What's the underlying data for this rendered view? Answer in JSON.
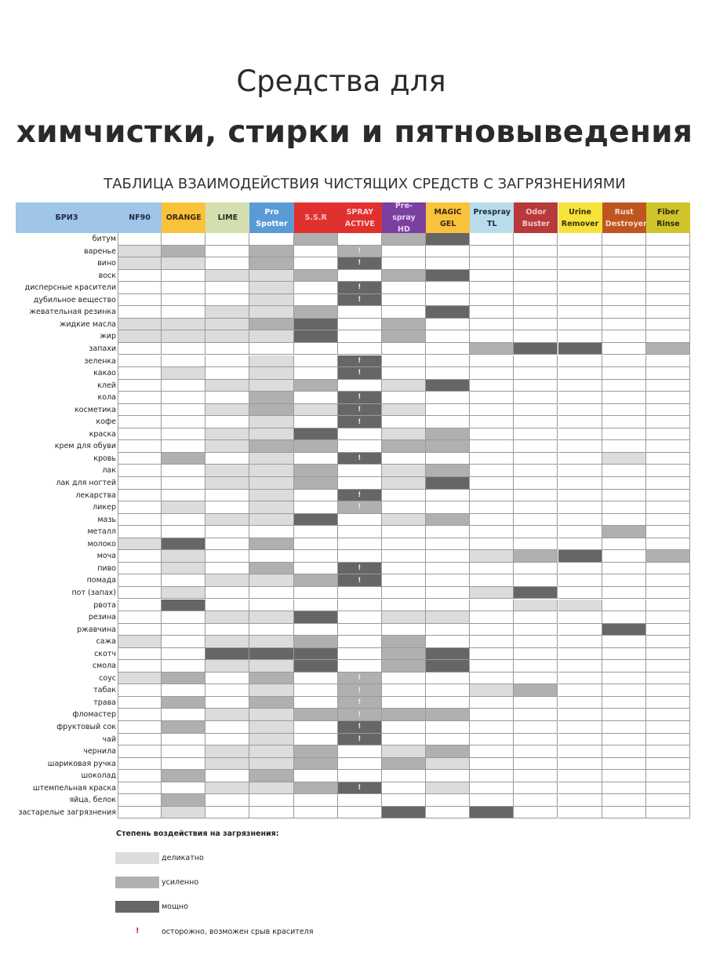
{
  "title_line1": "Средства для",
  "title_line2": "химчистки, стирки и пятновыведения",
  "subtitle": "ТАБЛИЦА ВЗАИМОДЕЙСТВИЯ ЧИСТЯЩИХ СРЕДСТВ С ЗАГРЯЗНЕНИЯМИ",
  "corner_label": "БРИЗ",
  "products": [
    {
      "name": "NF90",
      "bg": "#9fc5e8",
      "fg": "#1e2a44"
    },
    {
      "name": "ORANGE",
      "bg": "#f9c23c",
      "fg": "#3a2a10"
    },
    {
      "name": "LIME",
      "bg": "#d4dfb0",
      "fg": "#2a2a2a"
    },
    {
      "name": "Pro Spotter",
      "bg": "#5b9bd5",
      "fg": "#ffffff"
    },
    {
      "name": "S.S.R",
      "bg": "#e0312f",
      "fg": "#f4c0c0"
    },
    {
      "name": "SPRAY ACTIVE",
      "bg": "#e0312f",
      "fg": "#f9d2d2"
    },
    {
      "name": "Pre-spray HD",
      "bg": "#7b3fa0",
      "fg": "#e6d2f2"
    },
    {
      "name": "MAGIC GEL",
      "bg": "#f9c23c",
      "fg": "#3a2a10"
    },
    {
      "name": "Prespray TL",
      "bg": "#b9dcea",
      "fg": "#1e2a44"
    },
    {
      "name": "Odor Buster",
      "bg": "#b8393c",
      "fg": "#f2c8c8"
    },
    {
      "name": "Urine Remover",
      "bg": "#f5e23a",
      "fg": "#3a3010"
    },
    {
      "name": "Rust Destroyer",
      "bg": "#c0561f",
      "fg": "#f5dccb"
    },
    {
      "name": "Fiber Rinse",
      "bg": "#cfc42a",
      "fg": "#2a2a10"
    }
  ],
  "level_colors": {
    "1": "#dcdcdc",
    "2": "#b0b0b0",
    "3": "#676565"
  },
  "rows": [
    {
      "name": "битум",
      "cells": [
        "",
        "",
        "",
        "",
        "2",
        "",
        "2",
        "3",
        "",
        "",
        "",
        "",
        ""
      ]
    },
    {
      "name": "варенье",
      "cells": [
        "1",
        "2",
        "",
        "2",
        "",
        "2!",
        "",
        "",
        "",
        "",
        "",
        "",
        ""
      ]
    },
    {
      "name": "вино",
      "cells": [
        "1",
        "1",
        "",
        "2",
        "",
        "3!",
        "",
        "",
        "",
        "",
        "",
        "",
        ""
      ]
    },
    {
      "name": "воск",
      "cells": [
        "",
        "",
        "1",
        "1",
        "2",
        "",
        "2",
        "3",
        "",
        "",
        "",
        "",
        ""
      ]
    },
    {
      "name": "дисперсные красители",
      "cells": [
        "",
        "",
        "",
        "1",
        "",
        "3!",
        "",
        "",
        "",
        "",
        "",
        "",
        ""
      ]
    },
    {
      "name": "дубильное вещество",
      "cells": [
        "",
        "",
        "",
        "1",
        "",
        "3!",
        "",
        "",
        "",
        "",
        "",
        "",
        ""
      ]
    },
    {
      "name": "жевательная резинка",
      "cells": [
        "",
        "",
        "1",
        "1",
        "2",
        "",
        "",
        "3",
        "",
        "",
        "",
        "",
        ""
      ]
    },
    {
      "name": "жидкие масла",
      "cells": [
        "1",
        "1",
        "1",
        "2",
        "3",
        "",
        "2",
        "",
        "",
        "",
        "",
        "",
        ""
      ]
    },
    {
      "name": "жир",
      "cells": [
        "1",
        "1",
        "1",
        "1",
        "3",
        "",
        "2",
        "",
        "",
        "",
        "",
        "",
        ""
      ]
    },
    {
      "name": "запахи",
      "cells": [
        "",
        "",
        "",
        "",
        "",
        "",
        "",
        "",
        "2",
        "3",
        "3",
        "",
        "2"
      ]
    },
    {
      "name": "зеленка",
      "cells": [
        "",
        "",
        "",
        "1",
        "",
        "3!",
        "",
        "",
        "",
        "",
        "",
        "",
        ""
      ]
    },
    {
      "name": "какао",
      "cells": [
        "",
        "1",
        "",
        "1",
        "",
        "3!",
        "",
        "",
        "",
        "",
        "",
        "",
        ""
      ]
    },
    {
      "name": "клей",
      "cells": [
        "",
        "",
        "1",
        "1",
        "2",
        "",
        "1",
        "3",
        "",
        "",
        "",
        "",
        ""
      ]
    },
    {
      "name": "кола",
      "cells": [
        "",
        "",
        "",
        "2",
        "",
        "3!",
        "",
        "",
        "",
        "",
        "",
        "",
        ""
      ]
    },
    {
      "name": "косметика",
      "cells": [
        "",
        "",
        "1",
        "2",
        "1",
        "3!",
        "1",
        "",
        "",
        "",
        "",
        "",
        ""
      ]
    },
    {
      "name": "кофе",
      "cells": [
        "",
        "",
        "",
        "1",
        "",
        "3!",
        "",
        "",
        "",
        "",
        "",
        "",
        ""
      ]
    },
    {
      "name": "краска",
      "cells": [
        "",
        "",
        "1",
        "1",
        "3",
        "",
        "1",
        "2",
        "",
        "",
        "",
        "",
        ""
      ]
    },
    {
      "name": "крем для обуви",
      "cells": [
        "",
        "",
        "1",
        "2",
        "2",
        "",
        "2",
        "2",
        "",
        "",
        "",
        "",
        ""
      ]
    },
    {
      "name": "кровь",
      "cells": [
        "",
        "2",
        "",
        "1",
        "",
        "3!",
        "",
        "",
        "",
        "",
        "",
        "1",
        ""
      ]
    },
    {
      "name": "лак",
      "cells": [
        "",
        "",
        "1",
        "1",
        "2",
        "",
        "1",
        "2",
        "",
        "",
        "",
        "",
        ""
      ]
    },
    {
      "name": "лак для ногтей",
      "cells": [
        "",
        "",
        "1",
        "1",
        "2",
        "",
        "1",
        "3",
        "",
        "",
        "",
        "",
        ""
      ]
    },
    {
      "name": "лекарства",
      "cells": [
        "",
        "",
        "",
        "1",
        "",
        "3!",
        "",
        "",
        "",
        "",
        "",
        "",
        ""
      ]
    },
    {
      "name": "ликер",
      "cells": [
        "",
        "1",
        "",
        "1",
        "",
        "2!",
        "",
        "",
        "",
        "",
        "",
        "",
        ""
      ]
    },
    {
      "name": "мазь",
      "cells": [
        "",
        "",
        "1",
        "1",
        "3",
        "",
        "1",
        "2",
        "",
        "",
        "",
        "",
        ""
      ]
    },
    {
      "name": "металл",
      "cells": [
        "",
        "",
        "",
        "",
        "",
        "",
        "",
        "",
        "",
        "",
        "",
        "2",
        ""
      ]
    },
    {
      "name": "молоко",
      "cells": [
        "1",
        "3",
        "",
        "2",
        "",
        "",
        "",
        "",
        "",
        "",
        "",
        "",
        ""
      ]
    },
    {
      "name": "моча",
      "cells": [
        "",
        "1",
        "",
        "",
        "",
        "",
        "",
        "",
        "1",
        "2",
        "3",
        "",
        "2"
      ]
    },
    {
      "name": "пиво",
      "cells": [
        "",
        "1",
        "",
        "2",
        "",
        "3!",
        "",
        "",
        "",
        "",
        "",
        "",
        ""
      ]
    },
    {
      "name": "помада",
      "cells": [
        "",
        "",
        "1",
        "1",
        "2",
        "3!",
        "",
        "",
        "",
        "",
        "",
        "",
        ""
      ]
    },
    {
      "name": "пот (запах)",
      "cells": [
        "",
        "1",
        "",
        "",
        "",
        "",
        "",
        "",
        "1",
        "3",
        "",
        "",
        ""
      ]
    },
    {
      "name": "рвота",
      "cells": [
        "",
        "3",
        "",
        "",
        "",
        "",
        "",
        "",
        "",
        "1",
        "1",
        "",
        ""
      ]
    },
    {
      "name": "резина",
      "cells": [
        "",
        "",
        "1",
        "1",
        "3",
        "",
        "1",
        "1",
        "",
        "",
        "",
        "",
        ""
      ]
    },
    {
      "name": "ржавчина",
      "cells": [
        "",
        "",
        "",
        "",
        "",
        "",
        "",
        "",
        "",
        "",
        "",
        "3",
        ""
      ]
    },
    {
      "name": "сажа",
      "cells": [
        "1",
        "",
        "1",
        "1",
        "2",
        "",
        "2",
        "",
        "",
        "",
        "",
        "",
        ""
      ]
    },
    {
      "name": "скотч",
      "cells": [
        "",
        "",
        "3",
        "3",
        "3",
        "",
        "2",
        "3",
        "",
        "",
        "",
        "",
        ""
      ]
    },
    {
      "name": "смола",
      "cells": [
        "",
        "",
        "1",
        "1",
        "3",
        "",
        "2",
        "3",
        "",
        "",
        "",
        "",
        ""
      ]
    },
    {
      "name": "соус",
      "cells": [
        "1",
        "2",
        "",
        "2",
        "",
        "2!",
        "",
        "",
        "",
        "",
        "",
        "",
        ""
      ]
    },
    {
      "name": "табак",
      "cells": [
        "",
        "",
        "",
        "1",
        "",
        "2!",
        "",
        "",
        "1",
        "2",
        "",
        "",
        ""
      ]
    },
    {
      "name": "трава",
      "cells": [
        "",
        "2",
        "",
        "2",
        "",
        "2!",
        "",
        "",
        "",
        "",
        "",
        "",
        ""
      ]
    },
    {
      "name": "фломастер",
      "cells": [
        "",
        "",
        "1",
        "1",
        "2",
        "2!",
        "2",
        "2",
        "",
        "",
        "",
        "",
        ""
      ]
    },
    {
      "name": "фруктовый сок",
      "cells": [
        "",
        "2",
        "",
        "1",
        "",
        "3!",
        "",
        "",
        "",
        "",
        "",
        "",
        ""
      ]
    },
    {
      "name": "чай",
      "cells": [
        "",
        "",
        "",
        "1",
        "",
        "3!",
        "",
        "",
        "",
        "",
        "",
        "",
        ""
      ]
    },
    {
      "name": "чернила",
      "cells": [
        "",
        "",
        "1",
        "1",
        "2",
        "",
        "1",
        "2",
        "",
        "",
        "",
        "",
        ""
      ]
    },
    {
      "name": "шариковая ручка",
      "cells": [
        "",
        "",
        "1",
        "1",
        "2",
        "",
        "2",
        "1",
        "",
        "",
        "",
        "",
        ""
      ]
    },
    {
      "name": "шоколад",
      "cells": [
        "",
        "2",
        "",
        "2",
        "",
        "",
        "",
        "",
        "",
        "",
        "",
        "",
        ""
      ]
    },
    {
      "name": "штемпельная краска",
      "cells": [
        "",
        "",
        "1",
        "1",
        "2",
        "3!",
        "",
        "1",
        "",
        "",
        "",
        "",
        ""
      ]
    },
    {
      "name": "яйца, белок",
      "cells": [
        "",
        "2",
        "",
        "",
        "",
        "",
        "",
        "",
        "",
        "",
        "",
        "",
        ""
      ]
    },
    {
      "name": "застарелые загрязнения",
      "cells": [
        "",
        "1",
        "",
        "",
        "",
        "",
        "3",
        "",
        "3",
        "",
        "",
        "",
        ""
      ]
    }
  ],
  "legend": {
    "title": "Степень воздействия на загрязнения:",
    "light": "деликатно",
    "medium": "усиленно",
    "strong": "мощно",
    "caution_mark": "!",
    "caution": "осторожно, возможен срыв красителя"
  }
}
